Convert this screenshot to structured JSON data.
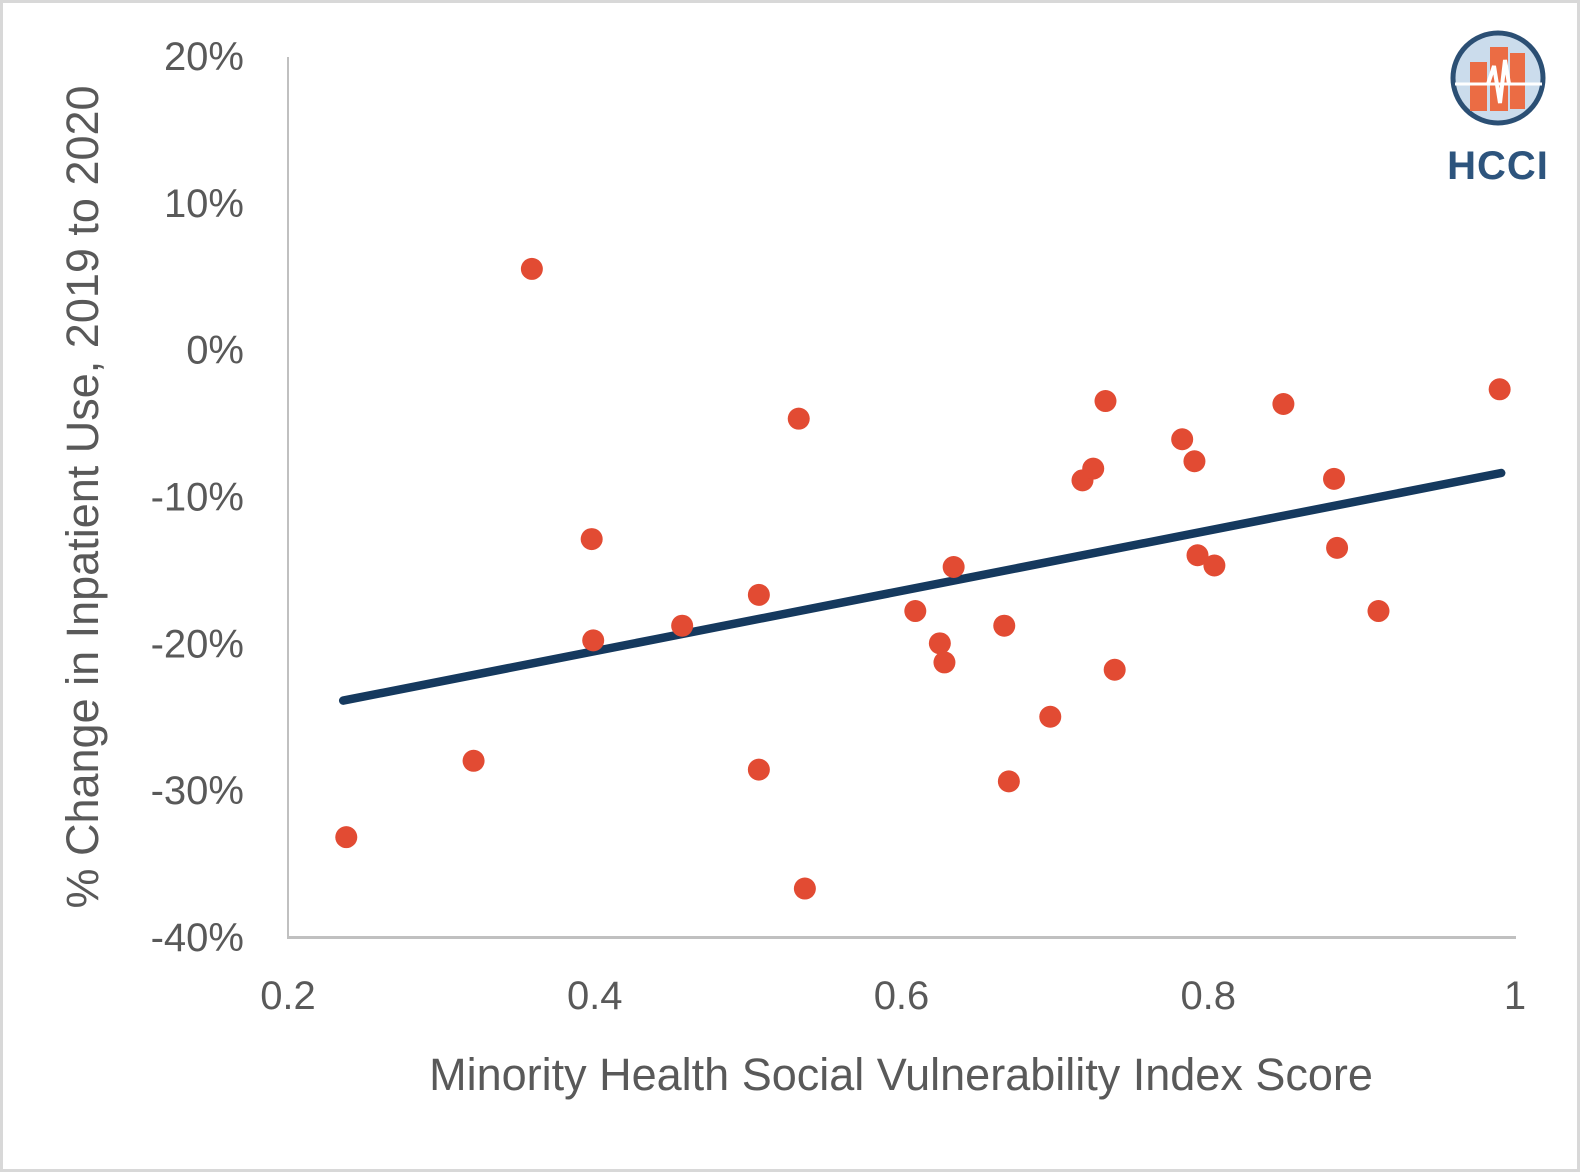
{
  "chart_data": {
    "type": "scatter",
    "title": "",
    "xlabel": "Minority Health Social Vulnerability Index Score",
    "ylabel": "% Change in Inpatient Use, 2019 to 2020",
    "xlim": [
      0.2,
      1.0
    ],
    "ylim": [
      -40,
      20
    ],
    "grid": false,
    "legend": null,
    "x_ticks": [
      {
        "value": 0.2,
        "label": "0.2"
      },
      {
        "value": 0.4,
        "label": "0.4"
      },
      {
        "value": 0.6,
        "label": "0.6"
      },
      {
        "value": 0.8,
        "label": "0.8"
      },
      {
        "value": 1.0,
        "label": "1"
      }
    ],
    "y_ticks": [
      {
        "value": 20,
        "label": "20%"
      },
      {
        "value": 10,
        "label": "10%"
      },
      {
        "value": 0,
        "label": "0%"
      },
      {
        "value": -10,
        "label": "-10%"
      },
      {
        "value": -20,
        "label": "-20%"
      },
      {
        "value": -30,
        "label": "-30%"
      },
      {
        "value": -40,
        "label": "-40%"
      }
    ],
    "points": [
      {
        "x": 0.238,
        "y": -33.2
      },
      {
        "x": 0.321,
        "y": -28.0
      },
      {
        "x": 0.359,
        "y": 5.5
      },
      {
        "x": 0.398,
        "y": -12.9
      },
      {
        "x": 0.399,
        "y": -19.8
      },
      {
        "x": 0.457,
        "y": -18.8
      },
      {
        "x": 0.507,
        "y": -16.7
      },
      {
        "x": 0.507,
        "y": -28.6
      },
      {
        "x": 0.533,
        "y": -4.7
      },
      {
        "x": 0.537,
        "y": -36.7
      },
      {
        "x": 0.609,
        "y": -17.8
      },
      {
        "x": 0.625,
        "y": -20.0
      },
      {
        "x": 0.628,
        "y": -21.3
      },
      {
        "x": 0.634,
        "y": -14.8
      },
      {
        "x": 0.667,
        "y": -18.8
      },
      {
        "x": 0.67,
        "y": -29.4
      },
      {
        "x": 0.697,
        "y": -25.0
      },
      {
        "x": 0.718,
        "y": -8.9
      },
      {
        "x": 0.725,
        "y": -8.1
      },
      {
        "x": 0.733,
        "y": -3.5
      },
      {
        "x": 0.739,
        "y": -21.8
      },
      {
        "x": 0.783,
        "y": -6.1
      },
      {
        "x": 0.791,
        "y": -7.6
      },
      {
        "x": 0.793,
        "y": -14.0
      },
      {
        "x": 0.804,
        "y": -14.7
      },
      {
        "x": 0.849,
        "y": -3.7
      },
      {
        "x": 0.882,
        "y": -8.8
      },
      {
        "x": 0.884,
        "y": -13.5
      },
      {
        "x": 0.911,
        "y": -17.8
      },
      {
        "x": 0.99,
        "y": -2.7
      }
    ],
    "trendline": {
      "x1": 0.236,
      "y1": -23.9,
      "x2": 0.991,
      "y2": -8.4
    },
    "colors": {
      "point": "#E24B33",
      "trend": "#15395E",
      "axis": "#C0C0C0",
      "text": "#595959"
    }
  },
  "logo": {
    "text": "HCCI",
    "colors": {
      "ring": "#2B4F74",
      "circle_fill": "#CBDCEC",
      "bars": "#EB6C44",
      "text": "#2D547D"
    }
  }
}
